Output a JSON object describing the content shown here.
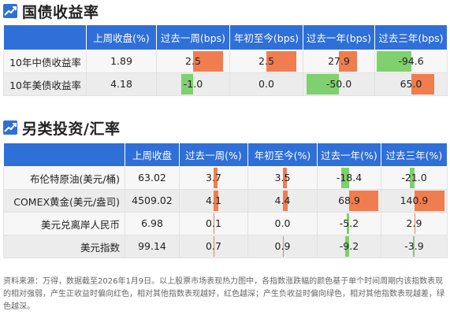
{
  "bond_section": {
    "title": "国债收益率",
    "headers": [
      "上周收盘(%)",
      "过去一周(bps)",
      "年初至今(bps)",
      "过去一年(bps)",
      "过去三年(bps)"
    ],
    "rows": [
      {
        "label": "10年中债收益率",
        "values": [
          "1.89",
          "2.5",
          "2.5",
          "27.9",
          "-94.6"
        ],
        "changes": [
          2.5,
          2.5,
          27.9,
          -94.6
        ]
      },
      {
        "label": "10年美债收益率",
        "values": [
          "4.18",
          "-1.0",
          "0.0",
          "-50.0",
          "65.0"
        ],
        "changes": [
          -1.0,
          0.0,
          -50.0,
          65.0
        ]
      }
    ],
    "bar_scales": [
      3,
      3,
      55,
      100
    ]
  },
  "alt_section": {
    "title": "另类投资/汇率",
    "headers": [
      "上周收盘",
      "过去一周(%)",
      "年初至今(%)",
      "过去一年(%)",
      "过去三年(%)"
    ],
    "rows": [
      {
        "label": "布伦特原油(美元/桶)",
        "values": [
          "63.02",
          "3.7",
          "3.5",
          "-18.4",
          "-21.0"
        ],
        "changes": [
          3.7,
          3.5,
          -18.4,
          -21.0
        ]
      },
      {
        "label": "COMEX黄金(美元/盎司)",
        "values": [
          "4509.02",
          "4.1",
          "4.4",
          "68.9",
          "140.9"
        ],
        "changes": [
          4.1,
          4.4,
          68.9,
          140.9
        ]
      },
      {
        "label": "美元兑离岸人民币",
        "values": [
          "6.98",
          "0.1",
          "0.0",
          "-5.2",
          "2.9"
        ],
        "changes": [
          0.1,
          0.0,
          -5.2,
          2.9
        ]
      },
      {
        "label": "美元指数",
        "values": [
          "99.14",
          "0.7",
          "0.9",
          "-9.2",
          "-3.9"
        ],
        "changes": [
          0.7,
          0.9,
          -9.2,
          -3.9
        ]
      }
    ],
    "bar_scales": [
      30,
      30,
      75,
      150
    ]
  },
  "colors": {
    "header_blue": "#2f6fd8",
    "positive": "#ef7d4f",
    "negative": "#7fd06e"
  },
  "icons": {
    "section_icon": "trend-up-icon"
  },
  "note": "资料来源：万得，数据截至2026年1月9日。以上股票市场表现热力图中，各指数涨跌幅的颜色基于单个时间周期内该指数表现的相对强弱，产生正收益时偏向红色，相对其他指数表现越好，红色越深；产生负收益时偏向绿色，相对其他指数表现越差，绿色越深。"
}
